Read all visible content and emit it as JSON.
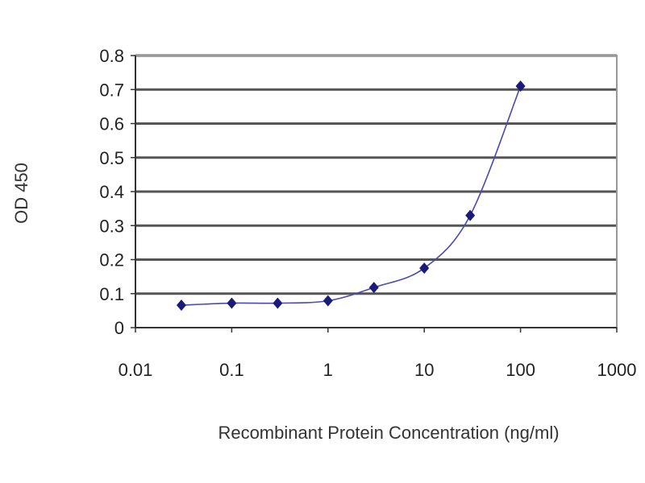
{
  "chart_data": {
    "type": "line",
    "title": "",
    "xlabel": "Recombinant Protein Concentration (ng/ml)",
    "ylabel": "OD 450",
    "x_scale": "log",
    "xlim": [
      0.01,
      1000
    ],
    "ylim": [
      0,
      0.8
    ],
    "x_ticks": [
      "0.01",
      "0.1",
      "1",
      "10",
      "100",
      "1000"
    ],
    "y_ticks": [
      "0",
      "0.1",
      "0.2",
      "0.3",
      "0.4",
      "0.5",
      "0.6",
      "0.7",
      "0.8"
    ],
    "grid": "horizontal",
    "legend": "none",
    "series": [
      {
        "x": [
          0.03,
          0.1,
          0.3,
          1,
          3,
          10,
          30,
          100
        ],
        "y": [
          0.066,
          0.072,
          0.072,
          0.079,
          0.118,
          0.175,
          0.33,
          0.71
        ],
        "color": "#1a1a7a",
        "line_color": "#4a4ab0",
        "marker": "diamond",
        "smooth": true
      }
    ]
  }
}
